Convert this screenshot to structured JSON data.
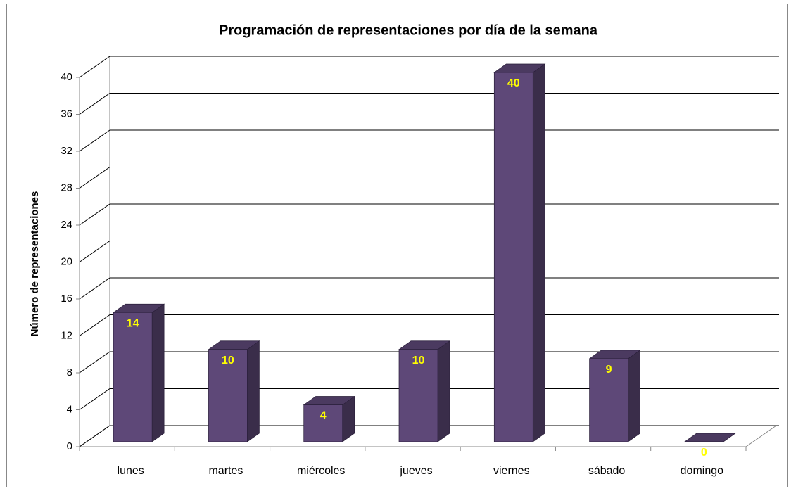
{
  "chart_data": {
    "type": "bar3d",
    "title": "Programación de representaciones por día de la semana",
    "y_label": "Número de representaciones",
    "categories": [
      "lunes",
      "martes",
      "miércoles",
      "jueves",
      "viernes",
      "sábado",
      "domingo"
    ],
    "values": [
      14,
      10,
      4,
      10,
      40,
      9,
      0
    ],
    "color": "#5e4878",
    "value_label_color": "#ffff00",
    "ylim": [
      0,
      40
    ],
    "yticks": [
      0,
      4,
      8,
      12,
      16,
      20,
      24,
      28,
      32,
      36,
      40
    ],
    "grid": true
  }
}
